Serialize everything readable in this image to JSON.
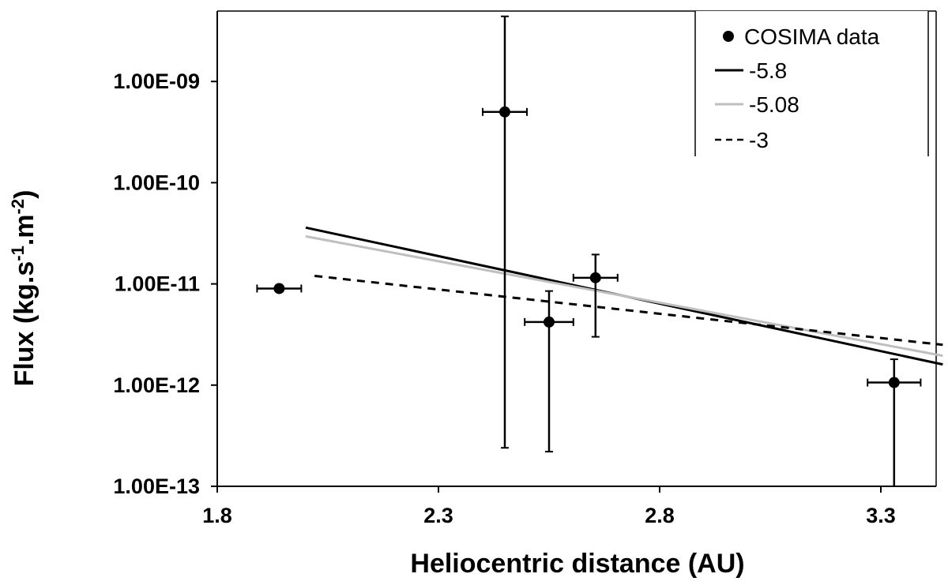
{
  "chart_data": {
    "type": "scatter",
    "xlabel": "Heliocentric distance (AU)",
    "ylabel_main": "Flux (kg.s",
    "ylabel_sup1": "-1",
    "ylabel_mid": ".m",
    "ylabel_sup2": "-2",
    "ylabel_end": ")",
    "xlim": [
      1.8,
      3.4
    ],
    "ylim_log10": [
      -13,
      -8.3
    ],
    "y_scale": "log",
    "x_ticks": [
      1.8,
      2.3,
      2.8,
      3.3
    ],
    "x_tick_labels": [
      "1.8",
      "2.3",
      "2.8",
      "3.3"
    ],
    "y_ticks_log10": [
      -13,
      -12,
      -11,
      -10,
      -9
    ],
    "y_tick_labels": [
      "1.00E-13",
      "1.00E-12",
      "1.00E-11",
      "1.00E-10",
      "1.00E-09"
    ],
    "legend_position": "top-right",
    "points": {
      "name": "COSIMA data",
      "data": [
        {
          "x": 1.94,
          "y": 9e-12,
          "xerr": 0.05,
          "ylow": 9e-12,
          "yhigh": 9e-12
        },
        {
          "x": 2.45,
          "y": 5e-10,
          "xerr": 0.05,
          "ylow": 2.4e-13,
          "yhigh": 4.4e-09
        },
        {
          "x": 2.55,
          "y": 4.2e-12,
          "xerr": 0.055,
          "ylow": 2.2e-13,
          "yhigh": 8.5e-12
        },
        {
          "x": 2.655,
          "y": 1.15e-11,
          "xerr": 0.05,
          "ylow": 3e-12,
          "yhigh": 1.95e-11
        },
        {
          "x": 3.33,
          "y": 1.06e-12,
          "xerr": 0.06,
          "ylow": 1e-13,
          "yhigh": 1.8e-12
        }
      ]
    },
    "series": [
      {
        "name": "-5.8",
        "color": "#000000",
        "dash": "",
        "x": [
          2.0,
          3.44
        ],
        "y": [
          3.6e-11,
          1.6e-12
        ]
      },
      {
        "name": "-5.08",
        "color": "#bfbfbf",
        "dash": "",
        "x": [
          2.0,
          3.44
        ],
        "y": [
          2.95e-11,
          1.95e-12
        ]
      },
      {
        "name": "-3",
        "color": "#000000",
        "dash": "10,8",
        "x": [
          2.02,
          3.44
        ],
        "y": [
          1.2e-11,
          2.5e-12
        ]
      }
    ]
  }
}
